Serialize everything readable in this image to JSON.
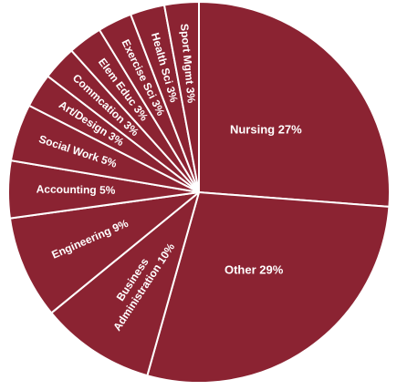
{
  "chart_data": {
    "type": "pie",
    "start": "top",
    "direction": "clockwise",
    "slice_color": "#8B2332",
    "border_color": "#ffffff",
    "slices": [
      {
        "label": "Nursing",
        "value": 27,
        "display": "Nursing  27%"
      },
      {
        "label": "Other",
        "value": 29,
        "display": "Other  29%"
      },
      {
        "label": "Business Administration",
        "value": 10,
        "display_lines": [
          "Business",
          "Administration  10%"
        ]
      },
      {
        "label": "Engineering",
        "value": 9,
        "display": "Engineering  9%"
      },
      {
        "label": "Accounting",
        "value": 5,
        "display": "Accounting  5%"
      },
      {
        "label": "Social Work",
        "value": 5,
        "display": "Social Work  5%"
      },
      {
        "label": "Art/Design",
        "value": 3,
        "display": "Art/Design  3%"
      },
      {
        "label": "Commcation",
        "value": 3,
        "display": "Commcation  3%"
      },
      {
        "label": "Elem Educ",
        "value": 3,
        "display": "Elem Educ  3%"
      },
      {
        "label": "Exercise Sci",
        "value": 3,
        "display": "Exercise Sci  3%"
      },
      {
        "label": "Health Sci",
        "value": 3,
        "display": "Health Sci  3%"
      },
      {
        "label": "Sport Mgmt",
        "value": 3,
        "display": "Sport Mgmt  3%"
      }
    ]
  }
}
